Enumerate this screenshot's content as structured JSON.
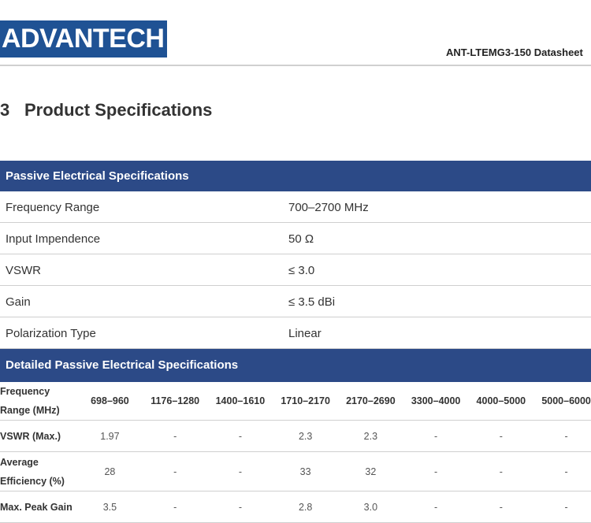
{
  "header": {
    "logo_text": "ADVANTECH",
    "doc_title": "ANT-LTEMG3-150  Datasheet"
  },
  "section": {
    "number": "3",
    "title": "Product Specifications"
  },
  "passive": {
    "title": "Passive Electrical Specifications",
    "rows": [
      {
        "label": "Frequency Range",
        "value": "700–2700 MHz"
      },
      {
        "label": "Input Impendence",
        "value": "50 Ω"
      },
      {
        "label": "VSWR",
        "value": "≤ 3.0"
      },
      {
        "label": "Gain",
        "value": "≤ 3.5 dBi"
      },
      {
        "label": "Polarization Type",
        "value": "Linear"
      }
    ]
  },
  "detailed": {
    "title": "Detailed Passive Electrical Specifications",
    "header": {
      "label": "Frequency Range (MHz)",
      "cols": [
        "698–960",
        "1176–1280",
        "1400–1610",
        "1710–2170",
        "2170–2690",
        "3300–4000",
        "4000–5000",
        "5000–6000"
      ]
    },
    "rows": [
      {
        "label": "VSWR (Max.)",
        "values": [
          "1.97",
          "-",
          "-",
          "2.3",
          "2.3",
          "-",
          "-",
          "-"
        ]
      },
      {
        "label": "Average Efficiency (%)",
        "values": [
          "28",
          "-",
          "-",
          "33",
          "32",
          "-",
          "-",
          "-"
        ]
      },
      {
        "label": "Max. Peak Gain",
        "values": [
          "3.5",
          "-",
          "-",
          "2.8",
          "3.0",
          "-",
          "-",
          "-"
        ]
      }
    ]
  },
  "colors": {
    "brand": "#1f5294",
    "band": "#2c4a87"
  }
}
